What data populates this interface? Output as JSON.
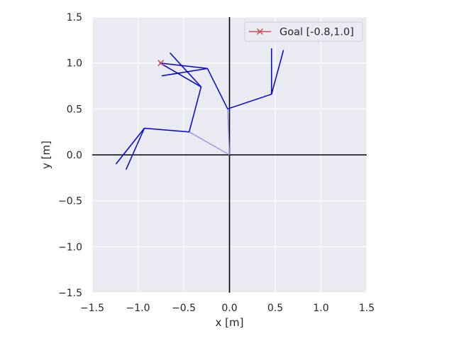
{
  "chart_data": {
    "type": "line",
    "xlabel": "x [m]",
    "ylabel": "y [m]",
    "xlim": [
      -1.5,
      1.5
    ],
    "ylim": [
      -1.5,
      1.5
    ],
    "xticks": [
      -1.5,
      -1.0,
      -0.5,
      0.0,
      0.5,
      1.0,
      1.5
    ],
    "yticks": [
      -1.5,
      -1.0,
      -0.5,
      0.0,
      0.5,
      1.0,
      1.5
    ],
    "xtick_labels": [
      "−1.5",
      "−1.0",
      "−0.5",
      "0.0",
      "0.5",
      "1.0",
      "1.5"
    ],
    "ytick_labels": [
      "−1.5",
      "−1.0",
      "−0.5",
      "0.0",
      "0.5",
      "1.0",
      "1.5"
    ],
    "grid": true,
    "legend_position": "top-right",
    "colors": {
      "background": "#eaeaf2",
      "grid": "#ffffff",
      "axes": "#000000",
      "arm": "#0000dd",
      "arm_faint": "#8888ee",
      "goal": "#c44e52"
    },
    "goal": {
      "label": "Goal [-0.8,1.0]",
      "x": -0.75,
      "y": 1.0
    },
    "arm_segments": [
      {
        "faint": true,
        "points": [
          [
            0.0,
            0.0
          ],
          [
            -0.44,
            0.25
          ]
        ]
      },
      {
        "faint": false,
        "points": [
          [
            -0.44,
            0.25
          ],
          [
            -0.93,
            0.29
          ],
          [
            -1.24,
            -0.1
          ]
        ]
      },
      {
        "faint": false,
        "points": [
          [
            -0.93,
            0.29
          ],
          [
            -1.13,
            -0.16
          ]
        ]
      },
      {
        "faint": true,
        "points": [
          [
            0.0,
            0.0
          ],
          [
            -0.02,
            0.5
          ]
        ]
      },
      {
        "faint": false,
        "points": [
          [
            -0.02,
            0.5
          ],
          [
            0.46,
            0.66
          ],
          [
            0.46,
            1.16
          ]
        ]
      },
      {
        "faint": false,
        "points": [
          [
            0.46,
            0.66
          ],
          [
            0.59,
            1.14
          ]
        ]
      },
      {
        "faint": false,
        "points": [
          [
            -0.44,
            0.25
          ],
          [
            -0.31,
            0.74
          ],
          [
            -0.76,
            1.0
          ],
          [
            -0.24,
            0.94
          ],
          [
            -0.74,
            0.86
          ]
        ]
      },
      {
        "faint": false,
        "points": [
          [
            -0.31,
            0.74
          ],
          [
            -0.65,
            1.11
          ]
        ]
      },
      {
        "faint": false,
        "points": [
          [
            -0.02,
            0.5
          ],
          [
            -0.24,
            0.94
          ]
        ]
      }
    ]
  }
}
